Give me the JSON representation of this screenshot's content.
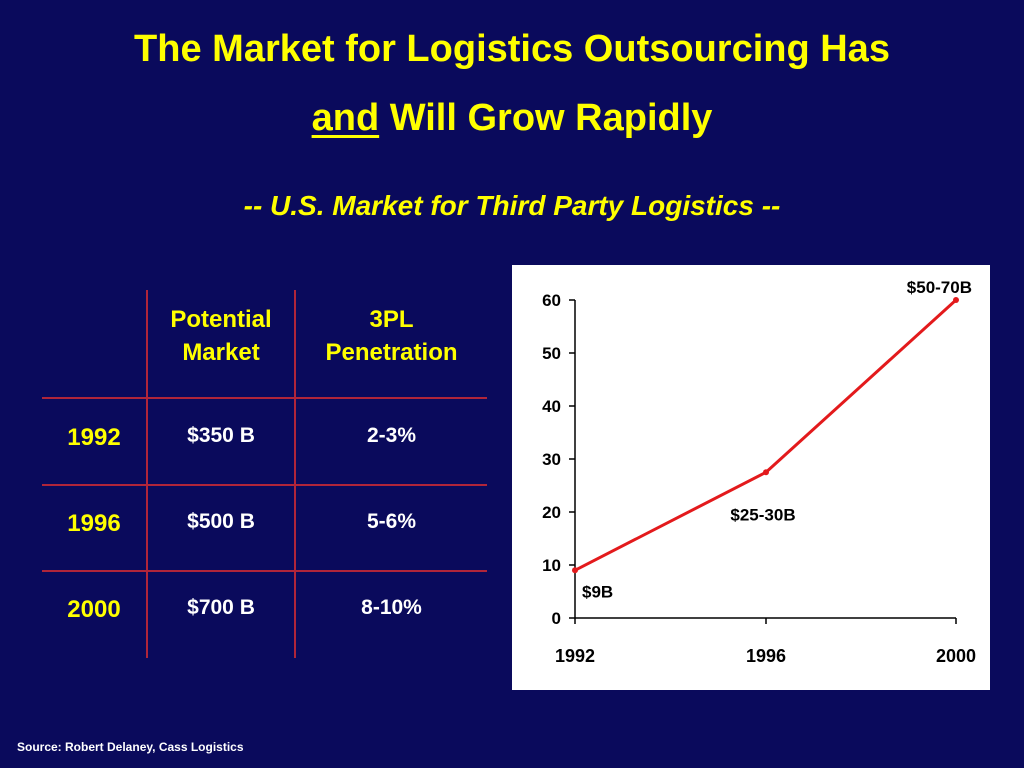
{
  "title": {
    "line1": "The Market for Logistics Outsourcing Has",
    "line2_underlined": "and",
    "line2_rest": " Will Grow Rapidly"
  },
  "subtitle": "-- U.S. Market for Third Party Logistics --",
  "table": {
    "headers": [
      "",
      "Potential\nMarket",
      "3PL\nPenetration"
    ],
    "rows": [
      {
        "year": "1992",
        "market": "$350 B",
        "penetration": "2-3%"
      },
      {
        "year": "1996",
        "market": "$500 B",
        "penetration": "5-6%"
      },
      {
        "year": "2000",
        "market": "$700 B",
        "penetration": "8-10%"
      }
    ]
  },
  "chart_data": {
    "type": "line",
    "x": [
      "1992",
      "1996",
      "2000"
    ],
    "series": [
      {
        "values": [
          9,
          27.5,
          60
        ],
        "color": "#e31a1c"
      }
    ],
    "data_labels": [
      "$9B",
      "$25-30B",
      "$50-70B"
    ],
    "yticks": [
      0,
      10,
      20,
      30,
      40,
      50,
      60
    ],
    "ylim": [
      0,
      60
    ],
    "grid": false,
    "legend": "none",
    "title": "",
    "xlabel": "",
    "ylabel": ""
  },
  "source": "Source: Robert Delaney, Cass Logistics",
  "colors": {
    "background": "#0a0a5c",
    "accent_yellow": "#ffff00",
    "table_lines": "#b0253a",
    "series_red": "#e31a1c"
  }
}
